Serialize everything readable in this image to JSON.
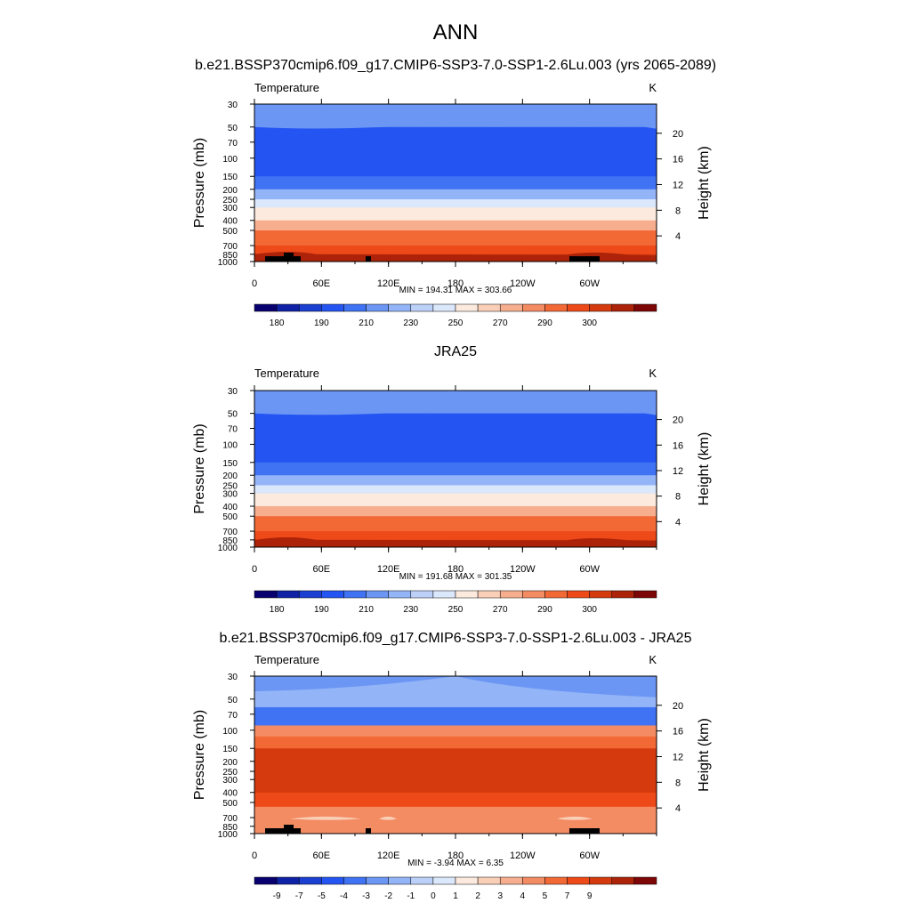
{
  "figure": {
    "main_title": "ANN",
    "season": "ANN"
  },
  "colors": {
    "abs_palette": [
      "#08006e",
      "#0f22a5",
      "#1a3fd1",
      "#2455f2",
      "#3f73f4",
      "#6b96f3",
      "#93b4f7",
      "#bcd0f8",
      "#dbe7fb",
      "#fbeadd",
      "#f9cfb8",
      "#f6ae8e",
      "#f38b63",
      "#f26936",
      "#ee4a19",
      "#d43a0e",
      "#ac2309",
      "#7d0606"
    ],
    "diff_palette": [
      "#08006e",
      "#0f22a5",
      "#1a3fd1",
      "#2455f2",
      "#3f73f4",
      "#6b96f3",
      "#93b4f7",
      "#bcd0f8",
      "#dbe7fb",
      "#fbeadd",
      "#f9cfb8",
      "#f6ae8e",
      "#f38b63",
      "#f26936",
      "#ee4a19",
      "#d43a0e",
      "#ac2309",
      "#7d0606"
    ],
    "topography": "#000000"
  },
  "chart_data": [
    {
      "type": "heatmap",
      "title": "b.e21.BSSP370cmip6.f09_g17.CMIP6-SSP3-7.0-SSP1-2.6Lu.003 (yrs 2065-2089)",
      "left_label": "Temperature",
      "units": "K",
      "ylabel": "Pressure (mb)",
      "ylabel_right": "Height (km)",
      "xticks": [
        "0",
        "60E",
        "120E",
        "180",
        "120W",
        "60W"
      ],
      "yticks": [
        "30",
        "50",
        "70",
        "100",
        "150",
        "200",
        "250",
        "300",
        "400",
        "500",
        "700",
        "850",
        "1000"
      ],
      "yticks_right": [
        "20",
        "16",
        "12",
        "8",
        "4"
      ],
      "stats": "MIN = 194.31  MAX = 303.66",
      "colorbar_labels": [
        "180",
        "190",
        "210",
        "230",
        "250",
        "270",
        "290",
        "300"
      ],
      "band_levels": [
        30,
        50,
        150,
        200,
        250,
        300,
        400,
        500,
        700,
        850,
        1000
      ],
      "band_colors": [
        5,
        3,
        4,
        6,
        8,
        9,
        11,
        13,
        14,
        15
      ],
      "has_topography": true
    },
    {
      "type": "heatmap",
      "title": "JRA25",
      "left_label": "Temperature",
      "units": "K",
      "ylabel": "Pressure (mb)",
      "ylabel_right": "Height (km)",
      "xticks": [
        "0",
        "60E",
        "120E",
        "180",
        "120W",
        "60W"
      ],
      "yticks": [
        "30",
        "50",
        "70",
        "100",
        "150",
        "200",
        "250",
        "300",
        "400",
        "500",
        "700",
        "850",
        "1000"
      ],
      "yticks_right": [
        "20",
        "16",
        "12",
        "8",
        "4"
      ],
      "stats": "MIN = 191.68  MAX = 301.35",
      "colorbar_labels": [
        "180",
        "190",
        "210",
        "230",
        "250",
        "270",
        "290",
        "300"
      ],
      "band_levels": [
        30,
        50,
        150,
        200,
        250,
        300,
        400,
        500,
        700,
        850,
        1000
      ],
      "band_colors": [
        5,
        3,
        4,
        6,
        8,
        9,
        11,
        13,
        14,
        15
      ],
      "has_topography": false
    },
    {
      "type": "heatmap",
      "title": "b.e21.BSSP370cmip6.f09_g17.CMIP6-SSP3-7.0-SSP1-2.6Lu.003 - JRA25",
      "left_label": "Temperature",
      "units": "K",
      "ylabel": "Pressure (mb)",
      "ylabel_right": "Height (km)",
      "xticks": [
        "0",
        "60E",
        "120E",
        "180",
        "120W",
        "60W"
      ],
      "yticks": [
        "30",
        "50",
        "70",
        "100",
        "150",
        "200",
        "250",
        "300",
        "400",
        "500",
        "700",
        "850",
        "1000"
      ],
      "yticks_right": [
        "20",
        "16",
        "12",
        "8",
        "4"
      ],
      "stats": "MIN =  -3.94  MAX =   6.35",
      "colorbar_labels": [
        "-9",
        "-7",
        "-5",
        "-4",
        "-3",
        "-2",
        "-1",
        "0",
        "1",
        "2",
        "3",
        "4",
        "5",
        "7",
        "9"
      ],
      "band_levels": [
        30,
        60,
        90,
        115,
        150,
        400,
        550,
        1000
      ],
      "band_colors": [
        6,
        4,
        12,
        13,
        15,
        14,
        12
      ],
      "has_topography": true
    }
  ]
}
